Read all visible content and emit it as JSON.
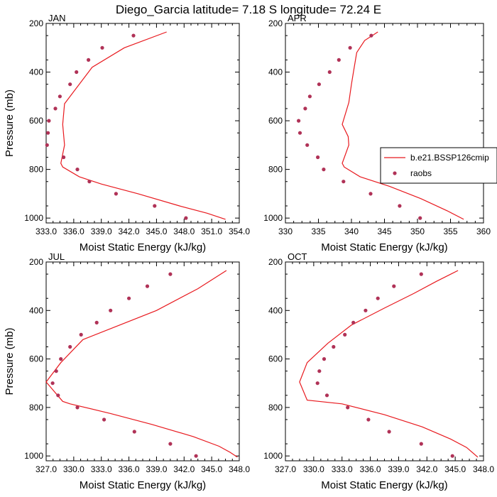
{
  "figure": {
    "title": "Diego_Garcia  latitude= 7.18 S longitude= 72.24 E"
  },
  "colors": {
    "model": "#e8191e",
    "obs": "#b03257",
    "axis": "#000000"
  },
  "legend": {
    "placement": "right-middle of APR panel",
    "model_label": "b.e21.BSSP126cmip",
    "obs_label": "raobs"
  },
  "chart_data": [
    {
      "type": "line",
      "panel": "JAN",
      "title": "JAN",
      "xlabel": "Moist Static Energy (kJ/kg)",
      "ylabel": "Pressure (mb)",
      "xlim": [
        333.0,
        354.0
      ],
      "ylim": [
        1020,
        200
      ],
      "xticks": [
        333.0,
        336.0,
        339.0,
        342.0,
        345.0,
        348.0,
        351.0,
        354.0
      ],
      "xtick_labels": [
        "333.0",
        "336.0",
        "339.0",
        "342.0",
        "345.0",
        "348.0",
        "351.0",
        "354.0"
      ],
      "yticks": [
        200,
        400,
        600,
        800,
        1000
      ],
      "ytick_labels": [
        "200",
        "400",
        "600",
        "800",
        "1000"
      ],
      "series": [
        {
          "name": "b.e21.BSSP126cmip",
          "kind": "line",
          "x": [
            346.1,
            341.5,
            338.0,
            336.6,
            335.0,
            334.8,
            335.0,
            334.6,
            334.8,
            336.6,
            339.0,
            343.0,
            347.5,
            350.5,
            352.5
          ],
          "y": [
            235,
            300,
            380,
            450,
            530,
            615,
            700,
            775,
            790,
            830,
            860,
            900,
            950,
            980,
            1005
          ]
        },
        {
          "name": "raobs",
          "kind": "scatter",
          "x": [
            342.5,
            339.1,
            337.6,
            336.3,
            335.6,
            334.5,
            334.0,
            333.3,
            333.2,
            333.1,
            334.9,
            336.4,
            337.7,
            340.6,
            344.8,
            348.2
          ],
          "y": [
            250,
            300,
            350,
            400,
            450,
            500,
            550,
            600,
            650,
            700,
            750,
            800,
            850,
            900,
            950,
            1000
          ]
        }
      ]
    },
    {
      "type": "line",
      "panel": "APR",
      "title": "APR",
      "xlabel": "Moist Static Energy (kJ/kg)",
      "ylabel": "",
      "xlim": [
        330,
        360
      ],
      "ylim": [
        1020,
        200
      ],
      "xticks": [
        330,
        335,
        340,
        345,
        350,
        355,
        360
      ],
      "xtick_labels": [
        "330",
        "335",
        "340",
        "345",
        "350",
        "355",
        "360"
      ],
      "yticks": [
        200,
        400,
        600,
        800,
        1000
      ],
      "ytick_labels": [
        "200",
        "400",
        "600",
        "800",
        "1000"
      ],
      "series": [
        {
          "name": "b.e21.BSSP126cmip",
          "kind": "line",
          "x": [
            344.0,
            342.0,
            340.8,
            340.3,
            340.0,
            339.6,
            338.6,
            339.5,
            339.6,
            338.6,
            338.9,
            341.3,
            345.8,
            350.5,
            354.5,
            357.0
          ],
          "y": [
            235,
            270,
            320,
            400,
            450,
            525,
            615,
            665,
            700,
            775,
            790,
            830,
            870,
            920,
            970,
            1005
          ]
        },
        {
          "name": "raobs",
          "kind": "scatter",
          "x": [
            343.0,
            339.8,
            338.1,
            336.7,
            335.1,
            333.7,
            333.0,
            332.0,
            332.2,
            333.3,
            334.9,
            335.8,
            338.8,
            342.9,
            347.3,
            350.4
          ],
          "y": [
            250,
            300,
            350,
            400,
            450,
            500,
            550,
            600,
            650,
            700,
            750,
            800,
            850,
            900,
            950,
            1000
          ]
        }
      ]
    },
    {
      "type": "line",
      "panel": "JUL",
      "title": "JUL",
      "xlabel": "Moist Static Energy (kJ/kg)",
      "ylabel": "Pressure (mb)",
      "xlim": [
        327.0,
        348.0
      ],
      "ylim": [
        1020,
        200
      ],
      "xticks": [
        327.0,
        330.0,
        333.0,
        336.0,
        339.0,
        342.0,
        345.0,
        348.0
      ],
      "xtick_labels": [
        "327.0",
        "330.0",
        "333.0",
        "336.0",
        "339.0",
        "342.0",
        "345.0",
        "348.0"
      ],
      "yticks": [
        200,
        400,
        600,
        800,
        1000
      ],
      "ytick_labels": [
        "200",
        "400",
        "600",
        "800",
        "1000"
      ],
      "series": [
        {
          "name": "b.e21.BSSP126cmip",
          "kind": "line",
          "x": [
            346.6,
            343.5,
            339.0,
            335.0,
            331.0,
            328.6,
            327.0,
            328.8,
            329.6,
            334.0,
            338.5,
            343.0,
            345.8,
            347.0,
            347.8
          ],
          "y": [
            235,
            310,
            400,
            460,
            520,
            615,
            695,
            775,
            785,
            825,
            870,
            920,
            960,
            985,
            1005
          ]
        },
        {
          "name": "raobs",
          "kind": "scatter",
          "x": [
            340.5,
            338.0,
            336.0,
            334.0,
            332.5,
            330.8,
            329.6,
            328.6,
            328.1,
            327.7,
            328.3,
            330.4,
            333.3,
            336.6,
            340.5,
            343.3
          ],
          "y": [
            250,
            300,
            350,
            400,
            450,
            500,
            550,
            600,
            650,
            700,
            750,
            800,
            850,
            900,
            950,
            1000
          ]
        }
      ]
    },
    {
      "type": "line",
      "panel": "OCT",
      "title": "OCT",
      "xlabel": "Moist Static Energy (kJ/kg)",
      "ylabel": "",
      "xlim": [
        327.0,
        348.0
      ],
      "ylim": [
        1020,
        200
      ],
      "xticks": [
        327.0,
        330.0,
        333.0,
        336.0,
        339.0,
        342.0,
        345.0,
        348.0
      ],
      "xtick_labels": [
        "327.0",
        "330.0",
        "333.0",
        "336.0",
        "339.0",
        "342.0",
        "345.0",
        "348.0"
      ],
      "yticks": [
        200,
        400,
        600,
        800,
        1000
      ],
      "ytick_labels": [
        "200",
        "400",
        "600",
        "800",
        "1000"
      ],
      "series": [
        {
          "name": "b.e21.BSSP126cmip",
          "kind": "line",
          "x": [
            345.3,
            343.0,
            340.6,
            337.5,
            334.0,
            331.5,
            329.3,
            328.5,
            329.3,
            333.0,
            337.5,
            341.5,
            344.5,
            346.2,
            347.4
          ],
          "y": [
            235,
            280,
            330,
            390,
            460,
            535,
            615,
            695,
            770,
            785,
            830,
            880,
            930,
            965,
            1005
          ]
        },
        {
          "name": "raobs",
          "kind": "scatter",
          "x": [
            341.4,
            338.5,
            336.8,
            335.5,
            334.2,
            333.3,
            332.1,
            331.1,
            330.6,
            330.4,
            331.4,
            333.6,
            335.8,
            338.0,
            341.4,
            344.7
          ],
          "y": [
            250,
            300,
            350,
            400,
            450,
            500,
            550,
            600,
            650,
            700,
            750,
            800,
            850,
            900,
            950,
            1000
          ]
        }
      ]
    }
  ]
}
